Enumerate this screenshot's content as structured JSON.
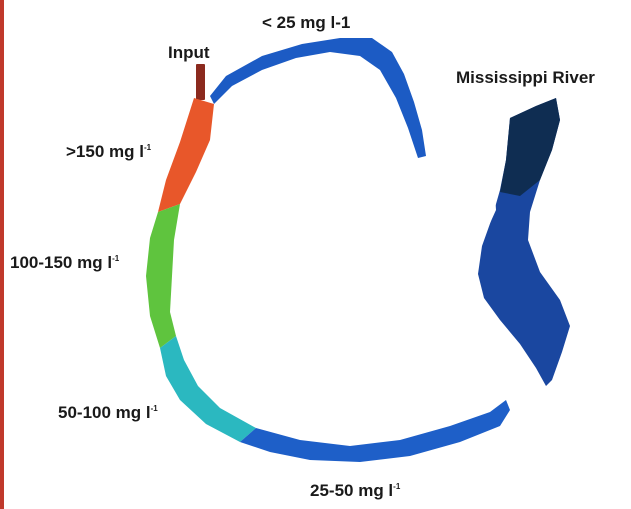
{
  "labels": {
    "input": "Input",
    "conc_over_150": ">150 mg l",
    "conc_over_150_sup": "-1",
    "conc_100_150": "100-150 mg l",
    "conc_100_150_sup": "-1",
    "conc_50_100": "50-100 mg l",
    "conc_50_100_sup": "-1",
    "conc_25_50": "25-50 mg l",
    "conc_25_50_sup": "-1",
    "conc_under_25": "< 25 mg l-1",
    "river": "Mississippi River"
  },
  "colors": {
    "over_150": "#e8572a",
    "c100_150": "#5fc43e",
    "c50_100": "#2bb8c0",
    "c25_50": "#1e5fc8",
    "under_25": "#1c5bc4",
    "input_pipe": "#8b2a1e",
    "river_dark": "#0f2d52",
    "river_mid": "#1a47a0",
    "border_left": "#c0392b"
  }
}
